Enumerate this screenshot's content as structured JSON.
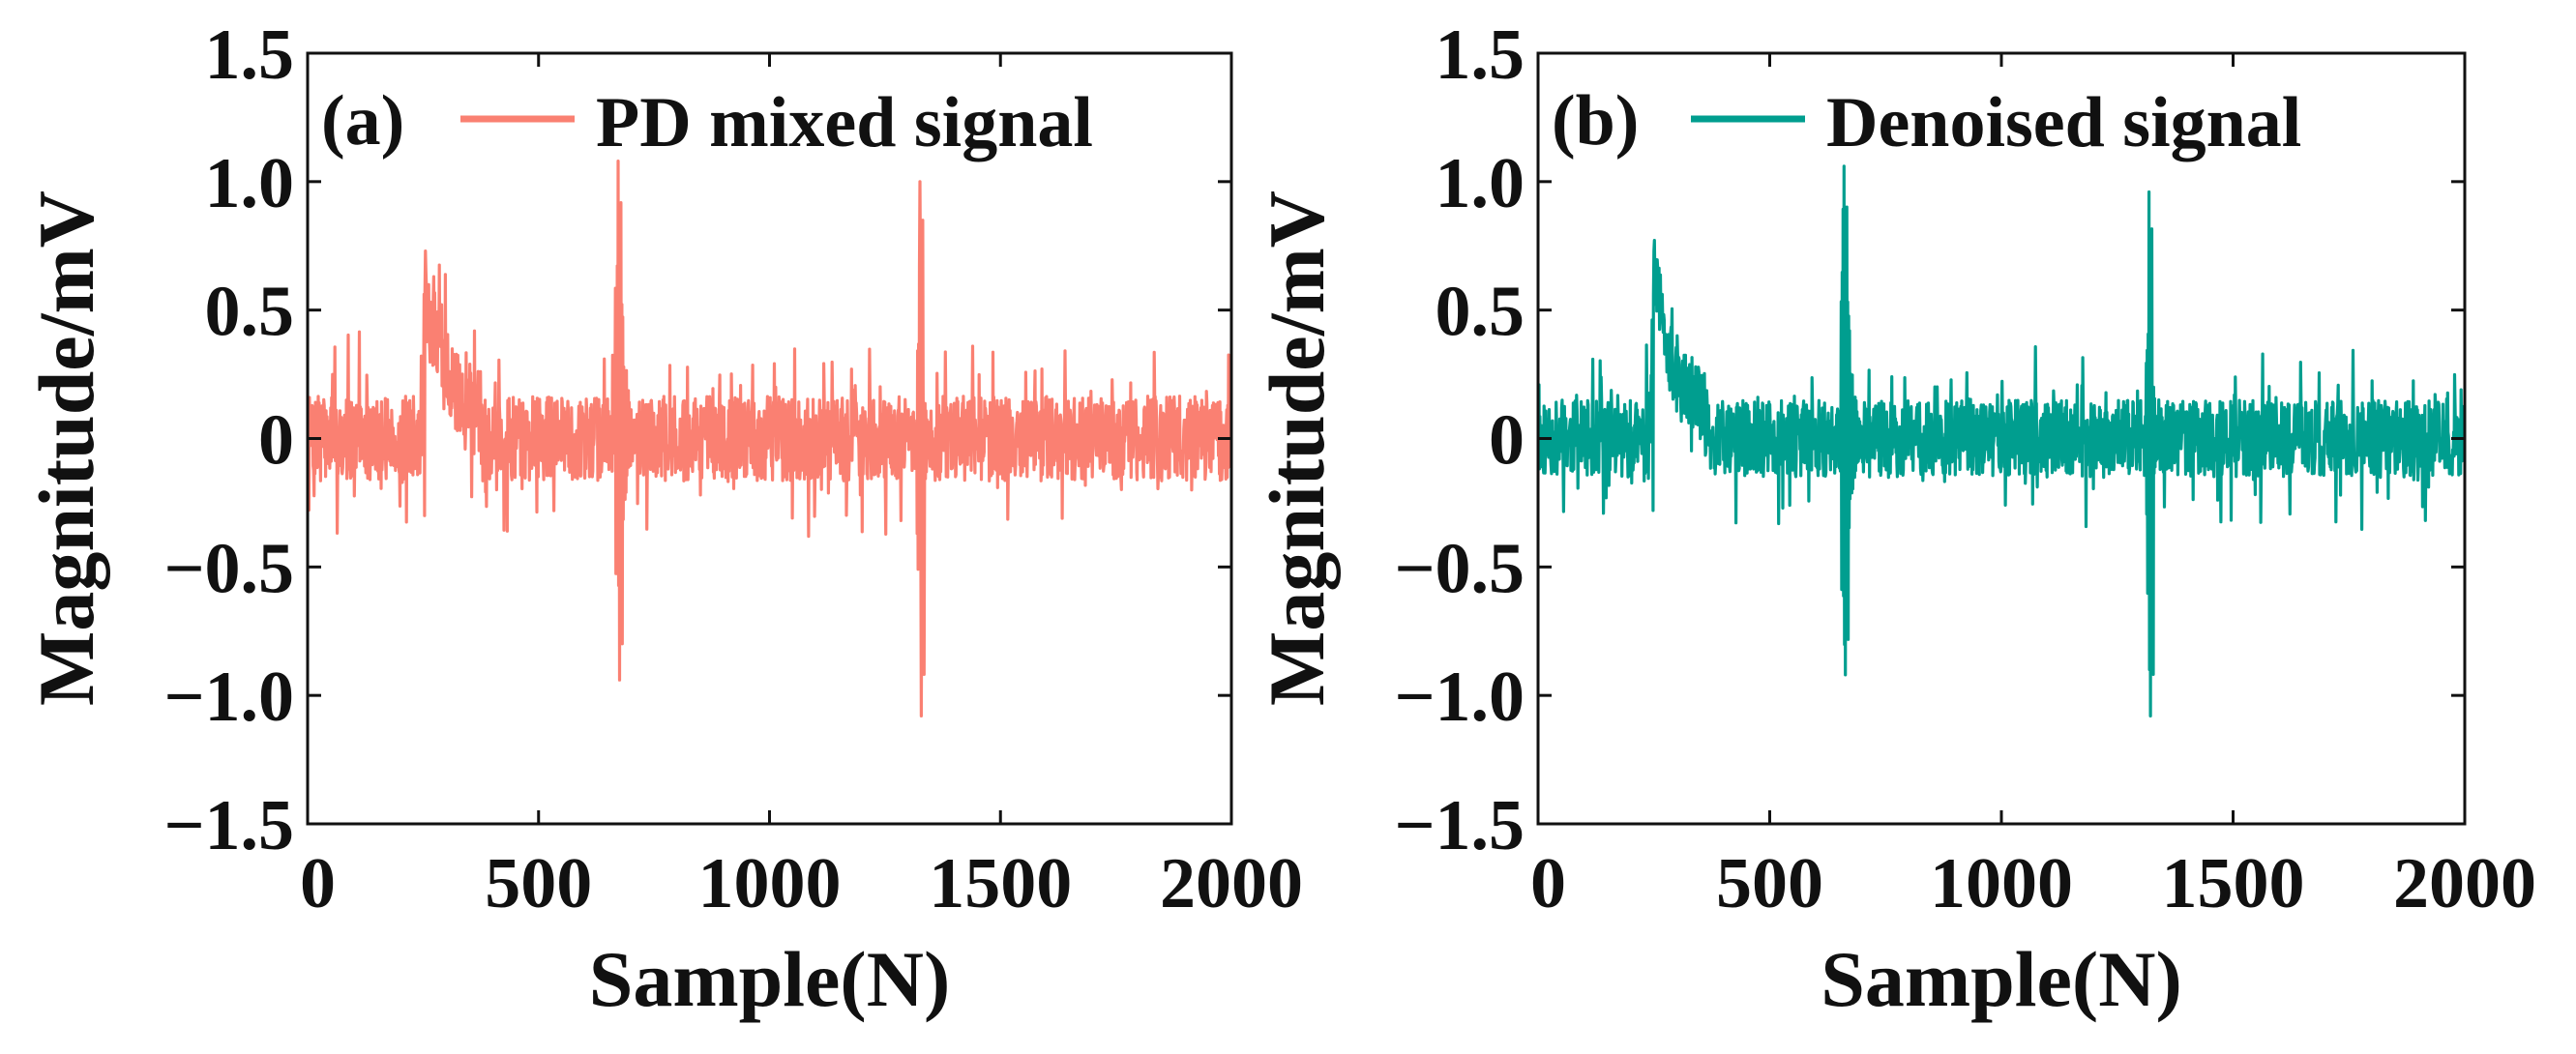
{
  "chart_data": [
    {
      "type": "line",
      "panel_label": "(a)",
      "legend": "PD mixed signal",
      "color": "#FA8072",
      "xlabel": "Sample(N)",
      "ylabel": "Magnitude/mV",
      "xlim": [
        0,
        2000
      ],
      "ylim": [
        -1.5,
        1.5
      ],
      "xticks": [
        0,
        500,
        1000,
        1500,
        2000
      ],
      "xtick_labels": [
        "0",
        "500",
        "1000",
        "1500",
        "2000"
      ],
      "yticks": [
        1.5,
        1.0,
        0.5,
        0,
        -0.5,
        -1.0,
        -1.5
      ],
      "ytick_labels": [
        "1.5",
        "1.0",
        "0.5",
        "0",
        "−0.5",
        "−1.0",
        "−1.5"
      ],
      "grid": false,
      "legend_position": "top",
      "series": [
        {
          "name": "PD mixed signal",
          "noise_amplitude": 0.3,
          "baseline": 0,
          "n_samples": 2000,
          "events": [
            {
              "x": 255,
              "peak": 0.73,
              "trough": -0.3,
              "type": "ramp-decay",
              "decay": 60
            },
            {
              "x": 672,
              "peak": 1.08,
              "trough": -0.94,
              "type": "oscillation",
              "width": 40
            },
            {
              "x": 1325,
              "peak": 1.0,
              "trough": -1.08,
              "type": "oscillation",
              "width": 20
            }
          ],
          "seed": 7
        }
      ]
    },
    {
      "type": "line",
      "panel_label": "(b)",
      "legend": "Denoised signal",
      "color": "#009E8F",
      "xlabel": "Sample(N)",
      "ylabel": "Magnitude/mV",
      "xlim": [
        0,
        2000
      ],
      "ylim": [
        -1.5,
        1.5
      ],
      "xticks": [
        0,
        500,
        1000,
        1500,
        2000
      ],
      "xtick_labels": [
        "0",
        "500",
        "1000",
        "1500",
        "2000"
      ],
      "yticks": [
        1.5,
        1.0,
        0.5,
        0,
        -0.5,
        -1.0,
        -1.5
      ],
      "ytick_labels": [
        "1.5",
        "1.0",
        "0.5",
        "0",
        "−0.5",
        "−1.0",
        "−1.5"
      ],
      "grid": false,
      "legend_position": "top",
      "series": [
        {
          "name": "Denoised signal",
          "noise_amplitude": 0.27,
          "baseline": 0,
          "n_samples": 2000,
          "events": [
            {
              "x": 250,
              "peak": 0.73,
              "trough": -0.28,
              "type": "ramp-decay",
              "decay": 60
            },
            {
              "x": 660,
              "peak": 1.06,
              "trough": -0.92,
              "type": "oscillation",
              "width": 40
            },
            {
              "x": 1318,
              "peak": 0.96,
              "trough": -1.08,
              "type": "oscillation",
              "width": 20
            }
          ],
          "seed": 11
        }
      ]
    }
  ]
}
